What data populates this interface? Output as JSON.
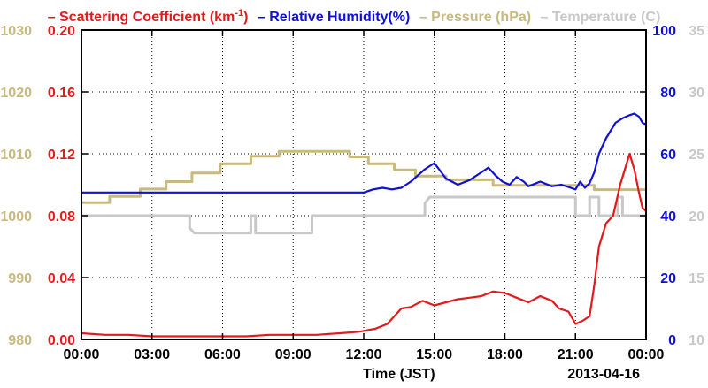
{
  "legend": {
    "scattering_prefix": "– Scattering Coefficient (km",
    "scattering_sup": "-1",
    "scattering_suffix": ")",
    "humidity": "– Relative Humidity(%)",
    "pressure": "– Pressure (hPa)",
    "temperature": "– Temperature (C)"
  },
  "colors": {
    "scattering": "#e31a1c",
    "humidity": "#1010d8",
    "pressure": "#c8b97e",
    "temperature": "#c8c8c8",
    "grid": "#000000",
    "axis": "#000000"
  },
  "chart_data": {
    "type": "line",
    "xlabel": "Time (JST)",
    "date_label": "2013-04-16",
    "x_ticks": [
      "00:00",
      "03:00",
      "06:00",
      "09:00",
      "12:00",
      "15:00",
      "18:00",
      "21:00",
      "00:00"
    ],
    "x_hours": [
      0,
      3,
      6,
      9,
      12,
      15,
      18,
      21,
      24
    ],
    "xlim": [
      0,
      24
    ],
    "grid": true,
    "axes": {
      "scattering": {
        "ylim": [
          0.0,
          0.2
        ],
        "ticks": [
          "0.00",
          "0.04",
          "0.08",
          "0.12",
          "0.16",
          "0.20"
        ],
        "tick_values": [
          0.0,
          0.04,
          0.08,
          0.12,
          0.16,
          0.2
        ]
      },
      "pressure": {
        "ylim": [
          980,
          1030
        ],
        "ticks": [
          "980",
          "990",
          "1000",
          "1010",
          "1020",
          "1030"
        ],
        "tick_values": [
          980,
          990,
          1000,
          1010,
          1020,
          1030
        ]
      },
      "humidity": {
        "ylim": [
          0,
          100
        ],
        "ticks": [
          "0",
          "20",
          "40",
          "60",
          "80",
          "100"
        ],
        "tick_values": [
          0,
          20,
          40,
          60,
          80,
          100
        ]
      },
      "temperature": {
        "ylim": [
          10,
          35
        ],
        "ticks": [
          "10",
          "15",
          "20",
          "25",
          "30",
          "35"
        ],
        "tick_values": [
          10,
          15,
          20,
          25,
          30,
          35
        ]
      }
    },
    "series": [
      {
        "name": "Scattering Coefficient (km-1)",
        "axis": "scattering",
        "x": [
          0,
          1,
          2,
          3,
          4,
          5,
          6,
          7,
          8,
          9,
          10,
          11,
          11.8,
          12.5,
          13,
          13.3,
          13.6,
          14,
          14.5,
          15,
          15.5,
          16,
          16.5,
          17,
          17.5,
          18,
          18.5,
          19,
          19.5,
          20,
          20.3,
          20.7,
          21,
          21.3,
          21.6,
          21.8,
          22,
          22.3,
          22.6,
          22.9,
          23.1,
          23.3,
          23.5,
          23.7,
          23.85,
          24
        ],
        "y": [
          0.004,
          0.003,
          0.003,
          0.002,
          0.002,
          0.002,
          0.002,
          0.002,
          0.003,
          0.003,
          0.003,
          0.004,
          0.005,
          0.007,
          0.01,
          0.015,
          0.02,
          0.021,
          0.025,
          0.022,
          0.024,
          0.026,
          0.027,
          0.028,
          0.031,
          0.03,
          0.027,
          0.024,
          0.028,
          0.025,
          0.02,
          0.018,
          0.01,
          0.012,
          0.015,
          0.035,
          0.06,
          0.075,
          0.08,
          0.1,
          0.11,
          0.12,
          0.11,
          0.095,
          0.085,
          0.083
        ]
      },
      {
        "name": "Relative Humidity(%)",
        "axis": "humidity",
        "x": [
          0,
          3,
          6,
          9,
          10.5,
          11.5,
          12,
          12.4,
          12.8,
          13.2,
          13.6,
          14,
          14.3,
          14.6,
          14.8,
          15,
          15.2,
          15.5,
          16,
          16.5,
          17,
          17.3,
          17.6,
          17.9,
          18.2,
          18.5,
          18.8,
          19,
          19.5,
          20,
          20.4,
          20.8,
          21,
          21.2,
          21.4,
          21.6,
          21.8,
          22,
          22.3,
          22.7,
          23,
          23.3,
          23.5,
          23.7,
          23.85,
          24
        ],
        "y": [
          47.5,
          47.5,
          47.5,
          47.5,
          47.5,
          47.5,
          47.5,
          48.5,
          49,
          48.5,
          49,
          51,
          53,
          55,
          56,
          57,
          55,
          52,
          50,
          51.5,
          54,
          55.5,
          53,
          51,
          50,
          52.5,
          51,
          49.5,
          51,
          49.5,
          50,
          49,
          48.5,
          51,
          49,
          50.5,
          54,
          60,
          65,
          70,
          71.5,
          72.5,
          73,
          72,
          70,
          69.5
        ]
      },
      {
        "name": "Pressure (hPa)",
        "axis": "pressure",
        "x": [
          0,
          1.2,
          1.2,
          2.5,
          2.5,
          3.6,
          3.6,
          4.7,
          4.7,
          5.9,
          5.9,
          7.2,
          7.2,
          8.4,
          8.4,
          11.4,
          11.4,
          12.2,
          12.2,
          13.3,
          13.3,
          14.2,
          14.2,
          15.5,
          15.5,
          17.5,
          17.5,
          21.8,
          21.8,
          24
        ],
        "y": [
          1002.1,
          1002.1,
          1003.1,
          1003.1,
          1004.3,
          1004.3,
          1005.5,
          1005.5,
          1006.9,
          1006.9,
          1008.4,
          1008.4,
          1009.6,
          1009.6,
          1010.4,
          1010.4,
          1009.5,
          1009.5,
          1008.4,
          1008.4,
          1007.4,
          1007.4,
          1006.4,
          1006.4,
          1005.8,
          1005.8,
          1004.9,
          1004.9,
          1004.2,
          1004.2
        ]
      },
      {
        "name": "Temperature (C)",
        "axis": "temperature",
        "x": [
          0,
          4.6,
          4.6,
          4.8,
          4.8,
          7.2,
          7.2,
          7.4,
          7.4,
          9.8,
          9.8,
          14.6,
          14.6,
          14.8,
          14.8,
          21,
          21,
          21.6,
          21.6,
          22,
          22,
          22.8,
          22.8,
          23,
          23,
          24
        ],
        "y": [
          20,
          20,
          19,
          18.6,
          18.6,
          18.6,
          20,
          20,
          18.6,
          18.6,
          20,
          20,
          21,
          21.5,
          21.5,
          21.5,
          20,
          20,
          21.5,
          21.5,
          20,
          20,
          21.5,
          21.5,
          20,
          20
        ]
      }
    ]
  }
}
